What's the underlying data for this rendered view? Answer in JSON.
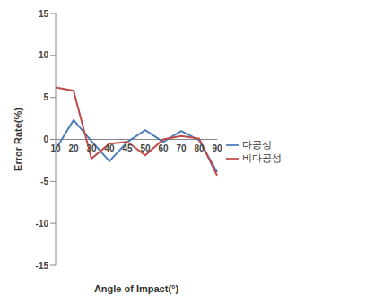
{
  "chart_data": {
    "type": "line",
    "x_label": "Angle of Impact(°)",
    "y_label": "Error Rate(%)",
    "categories": [
      "10",
      "20",
      "30",
      "40",
      "45",
      "50",
      "60",
      "70",
      "80",
      "90"
    ],
    "series": [
      {
        "name": "다공성",
        "color": "#4a7ebb",
        "values": [
          -1.2,
          2.3,
          -0.2,
          -2.6,
          -0.3,
          1.1,
          -0.3,
          1.0,
          -0.1,
          -3.9
        ]
      },
      {
        "name": "비다공성",
        "color": "#be4b48",
        "values": [
          6.2,
          5.8,
          -2.3,
          -0.5,
          -0.3,
          -1.9,
          0.0,
          0.4,
          0.1,
          -4.3
        ]
      }
    ],
    "ylim": [
      -15,
      15
    ],
    "yticks": [
      -15,
      -10,
      -5,
      0,
      5,
      10,
      15
    ],
    "grid": false,
    "legend": "right"
  }
}
